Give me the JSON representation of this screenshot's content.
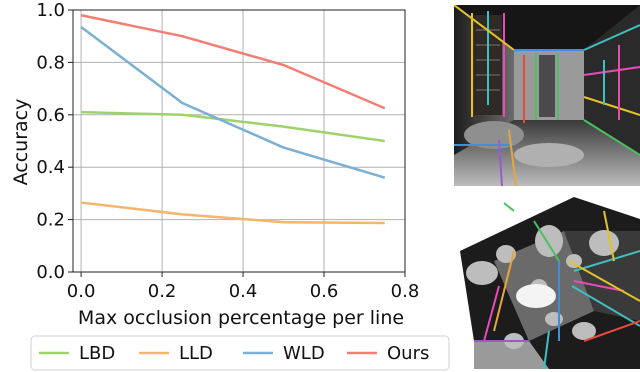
{
  "chart_data": {
    "type": "line",
    "xlabel": "Max occlusion percentage per line",
    "ylabel": "Accuracy",
    "xlim": [
      -0.02,
      0.8
    ],
    "ylim": [
      0,
      1.0
    ],
    "x_ticks": [
      0.0,
      0.2,
      0.4,
      0.6,
      0.8
    ],
    "y_ticks": [
      0.0,
      0.2,
      0.4,
      0.6,
      0.8,
      1.0
    ],
    "grid": true,
    "legend_position": "bottom",
    "series": [
      {
        "name": "LBD",
        "color": "#9ed36a",
        "x": [
          0.0,
          0.25,
          0.5,
          0.75
        ],
        "y": [
          0.61,
          0.6,
          0.555,
          0.5
        ]
      },
      {
        "name": "LLD",
        "color": "#f5b56a",
        "x": [
          0.0,
          0.25,
          0.5,
          0.75
        ],
        "y": [
          0.265,
          0.22,
          0.19,
          0.187
        ]
      },
      {
        "name": "WLD",
        "color": "#7bafd4",
        "x": [
          0.0,
          0.25,
          0.5,
          0.75
        ],
        "y": [
          0.935,
          0.645,
          0.475,
          0.36
        ]
      },
      {
        "name": "Ours",
        "color": "#f47e74",
        "x": [
          0.0,
          0.25,
          0.5,
          0.75
        ],
        "y": [
          0.98,
          0.9,
          0.79,
          0.625
        ]
      }
    ]
  },
  "images": {
    "top_name": "room-photo-with-detected-lines",
    "bottom_name": "occluded-room-photo-with-detected-lines"
  }
}
